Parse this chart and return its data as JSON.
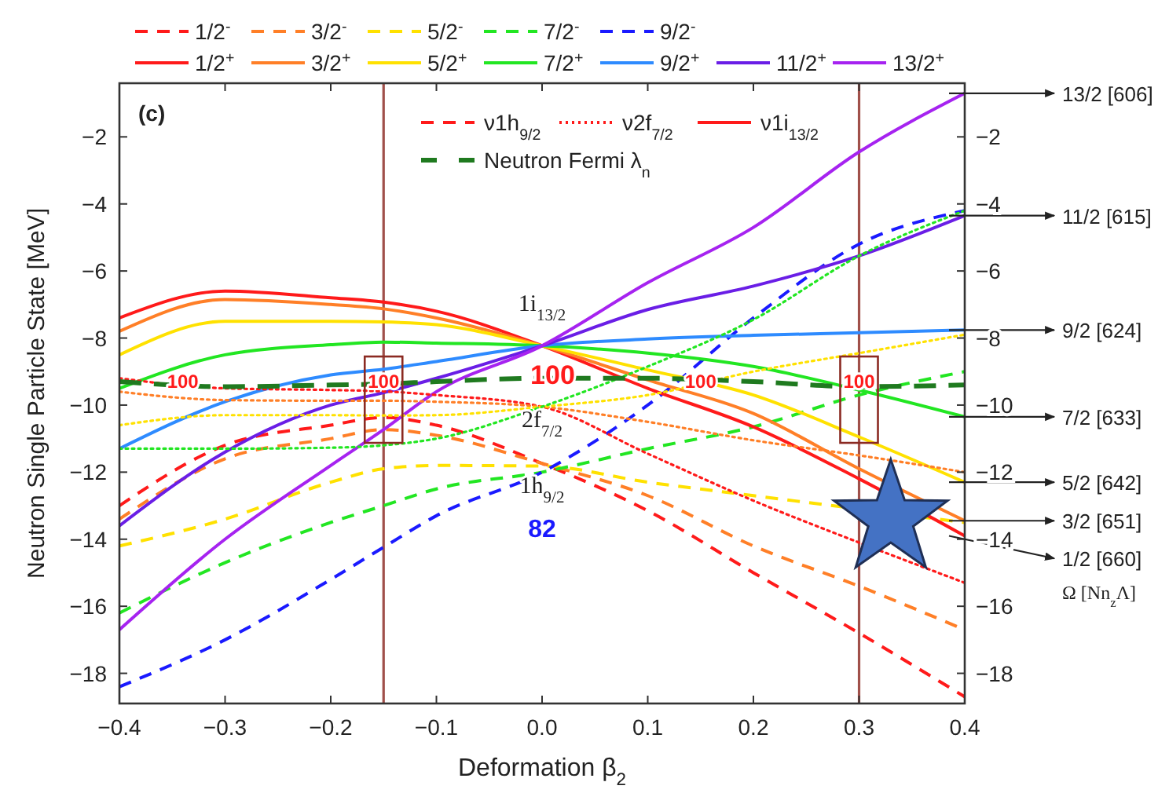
{
  "chart_data": {
    "type": "line",
    "xlabel": "Deformation β$_{2}$",
    "ylabel": "Neutron Single Particle State [MeV]",
    "x": [
      -0.4,
      -0.3,
      -0.2,
      -0.15,
      -0.1,
      0,
      0.1,
      0.2,
      0.3,
      0.4
    ],
    "xlim": [
      -0.4,
      0.4
    ],
    "xticks": [
      {
        "value": -0.4,
        "label": "−0.4"
      },
      {
        "value": -0.3,
        "label": "−0.3"
      },
      {
        "value": -0.2,
        "label": "−0.2"
      },
      {
        "value": -0.1,
        "label": "−0.1"
      },
      {
        "value": 0,
        "label": "0.0"
      },
      {
        "value": 0.1,
        "label": "0.1"
      },
      {
        "value": 0.2,
        "label": "0.2"
      },
      {
        "value": 0.3,
        "label": "0.3"
      },
      {
        "value": 0.4,
        "label": "0.4"
      }
    ],
    "ylim": [
      -18.9,
      -0.4
    ],
    "yticks": [
      -18,
      -16,
      -14,
      -12,
      -10,
      -8,
      -6,
      -4,
      -2
    ],
    "y2lim": [
      -18.9,
      -0.4
    ],
    "y2ticks": [
      -18,
      -16,
      -14,
      -12,
      -10,
      -8,
      -6,
      -4,
      -2
    ],
    "legend": "top",
    "grid": false,
    "series": [
      {
        "name": "1/2$^{-}$",
        "color": "#ff1a1a",
        "line_style": "dashed",
        "values": [
          -13.0,
          -11.2,
          -10.6,
          -10.37,
          -10.6,
          -11.74,
          -13.15,
          -15.0,
          -16.8,
          -18.7
        ]
      },
      {
        "name": "3/2$^{-}$",
        "color": "#ff7f27",
        "line_style": "dashed",
        "values": [
          -13.4,
          -11.6,
          -11.0,
          -10.73,
          -10.9,
          -11.74,
          -12.7,
          -14.2,
          -15.4,
          -16.7
        ]
      },
      {
        "name": "5/2$^{-}$",
        "color": "#ffe100",
        "line_style": "dashed",
        "x": [
          -0.4,
          -0.3,
          -0.2,
          -0.15,
          -0.1,
          0,
          0.1,
          0.2,
          0.25,
          0.4
        ],
        "values": [
          -14.2,
          -13.4,
          -12.3,
          -11.9,
          -11.8,
          -11.82,
          -12.3,
          -12.7,
          -12.9,
          -13.5
        ]
      },
      {
        "name": "7/2$^{-}$",
        "color": "#22e622",
        "line_style": "dashed",
        "values": [
          -16.2,
          -14.7,
          -13.5,
          -13.0,
          -12.5,
          -12.0,
          -11.3,
          -10.65,
          -9.7,
          -9.0
        ]
      },
      {
        "name": "9/2$^{-}$",
        "color": "#1a1aff",
        "line_style": "dashed",
        "values": [
          -18.4,
          -17.0,
          -15.2,
          -14.24,
          -13.3,
          -12.0,
          -10.0,
          -7.4,
          -5.2,
          -4.2
        ]
      },
      {
        "name": "1/2$^{+}$",
        "color": "#ff1a1a",
        "line_style": "solid",
        "values": [
          -7.4,
          -6.6,
          -6.8,
          -6.93,
          -7.2,
          -8.23,
          -9.5,
          -10.65,
          -12.2,
          -13.9
        ]
      },
      {
        "name": "3/2$^{+}$",
        "color": "#ff7f27",
        "line_style": "solid",
        "values": [
          -7.8,
          -6.85,
          -7.0,
          -7.13,
          -7.4,
          -8.23,
          -9.25,
          -10.25,
          -11.9,
          -13.45
        ]
      },
      {
        "name": "5/2$^{+}$",
        "color": "#ffe100",
        "line_style": "solid",
        "values": [
          -8.5,
          -7.5,
          -7.5,
          -7.52,
          -7.6,
          -8.23,
          -8.95,
          -9.7,
          -10.95,
          -12.3
        ]
      },
      {
        "name": "7/2$^{+}$",
        "color": "#22e622",
        "line_style": "solid",
        "values": [
          -9.5,
          -8.5,
          -8.2,
          -8.12,
          -8.15,
          -8.23,
          -8.45,
          -8.85,
          -9.55,
          -10.35
        ]
      },
      {
        "name": "9/2$^{+}$",
        "color": "#2e8bff",
        "line_style": "solid",
        "values": [
          -11.3,
          -9.9,
          -9.1,
          -8.93,
          -8.7,
          -8.23,
          -8.03,
          -7.92,
          -7.84,
          -7.76
        ]
      },
      {
        "name": "11/2$^{+}$",
        "color": "#6a1ee6",
        "line_style": "solid",
        "values": [
          -13.6,
          -11.4,
          -10.0,
          -9.63,
          -9.2,
          -8.23,
          -7.15,
          -6.45,
          -5.55,
          -4.35
        ]
      },
      {
        "name": "13/2$^{+}$",
        "color": "#a623f0",
        "line_style": "solid",
        "values": [
          -16.7,
          -14.0,
          -11.8,
          -10.73,
          -9.6,
          -8.23,
          -6.35,
          -4.7,
          -2.45,
          -0.7
        ]
      },
      {
        "color": "#ff1a1a",
        "line_style": "dotted",
        "values": [
          -9.2,
          -9.5,
          -9.55,
          -9.59,
          -9.7,
          -10.05,
          -11.45,
          -12.85,
          -14.1,
          -15.3
        ]
      },
      {
        "color": "#ff7f27",
        "line_style": "dotted",
        "values": [
          -9.6,
          -9.85,
          -9.87,
          -9.87,
          -9.9,
          -10.05,
          -10.5,
          -11.05,
          -11.5,
          -12.0
        ]
      },
      {
        "color": "#ffe100",
        "line_style": "dotted",
        "values": [
          -10.6,
          -10.3,
          -10.3,
          -10.31,
          -10.3,
          -10.05,
          -9.7,
          -9.0,
          -8.45,
          -7.9
        ]
      },
      {
        "color": "#22e622",
        "line_style": "dotted",
        "values": [
          -11.3,
          -11.3,
          -11.27,
          -11.2,
          -11.0,
          -10.05,
          -8.85,
          -7.45,
          -5.55,
          -4.2
        ]
      },
      {
        "name": "Neutron Fermi λ$_{n}$",
        "color": "#1f7a1f",
        "line_style": "dashed",
        "values": [
          -9.3,
          -9.45,
          -9.4,
          -9.37,
          -9.3,
          -9.2,
          -9.2,
          -9.3,
          -9.45,
          -9.4
        ]
      }
    ],
    "ref_lines": [
      {
        "axis": "x",
        "value": -0.15,
        "color": "#a0504a"
      },
      {
        "axis": "x",
        "value": 0.3,
        "color": "#a0504a"
      }
    ],
    "annotations": [
      "(c)",
      "ν1h$_{9/2}$",
      "ν2f$_{7/2}$",
      "ν1i$_{13/2}$",
      "1i$_{13/2}$",
      "2f$_{7/2}$",
      "1h$_{9/2}$",
      "82",
      {
        "text": "100",
        "x": 0.01,
        "y": -9.1
      },
      {
        "text": "100",
        "x": -0.34,
        "y": -9.3
      },
      {
        "text": "100",
        "x": -0.15,
        "y": -9.3
      },
      {
        "text": "100",
        "x": 0.15,
        "y": -9.3
      },
      {
        "text": "100",
        "x": 0.3,
        "y": -9.3
      },
      "13/2 [606]",
      "11/2 [615]",
      "9/2 [624]",
      "7/2 [633]",
      "5/2 [642]",
      "3/2 [651]",
      "1/2 [660]",
      "Ω [Nn$_{z}$Λ]"
    ]
  }
}
